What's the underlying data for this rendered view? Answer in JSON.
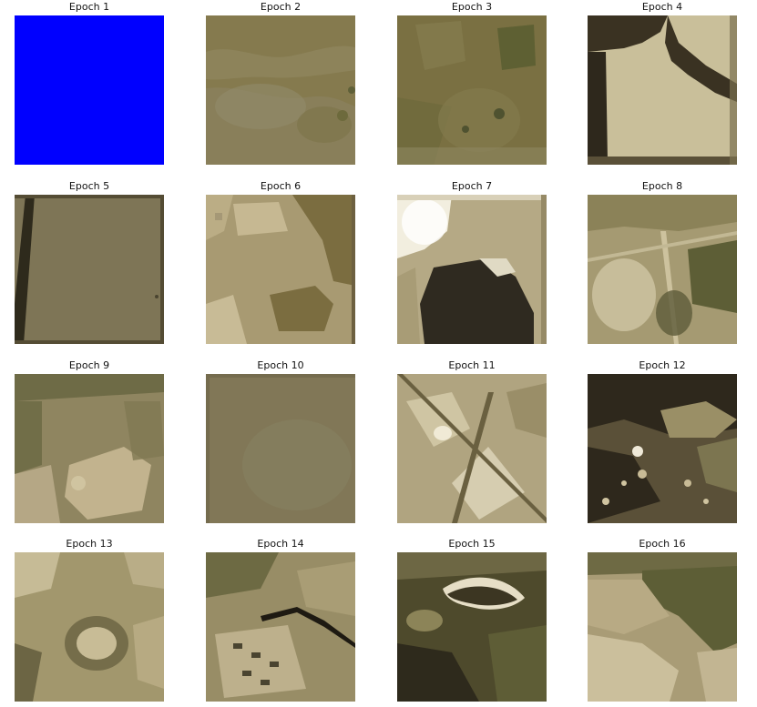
{
  "figure": {
    "panels": [
      {
        "title": "Epoch 1",
        "base_color": "#0000ff"
      },
      {
        "title": "Epoch 2",
        "base_color": "#857a4e"
      },
      {
        "title": "Epoch 3",
        "base_color": "#7a7042"
      },
      {
        "title": "Epoch 4",
        "base_color": "#c9bf9a"
      },
      {
        "title": "Epoch 5",
        "base_color": "#7e7556"
      },
      {
        "title": "Epoch 6",
        "base_color": "#a89a72"
      },
      {
        "title": "Epoch 7",
        "base_color": "#b5a985"
      },
      {
        "title": "Epoch 8",
        "base_color": "#a59a72"
      },
      {
        "title": "Epoch 9",
        "base_color": "#8f8560"
      },
      {
        "title": "Epoch 10",
        "base_color": "#817757"
      },
      {
        "title": "Epoch 11",
        "base_color": "#b0a480"
      },
      {
        "title": "Epoch 12",
        "base_color": "#5a5038"
      },
      {
        "title": "Epoch 13",
        "base_color": "#a2976d"
      },
      {
        "title": "Epoch 14",
        "base_color": "#988d66"
      },
      {
        "title": "Epoch 15",
        "base_color": "#4e4a2c"
      },
      {
        "title": "Epoch 16",
        "base_color": "#a99c76"
      }
    ]
  }
}
